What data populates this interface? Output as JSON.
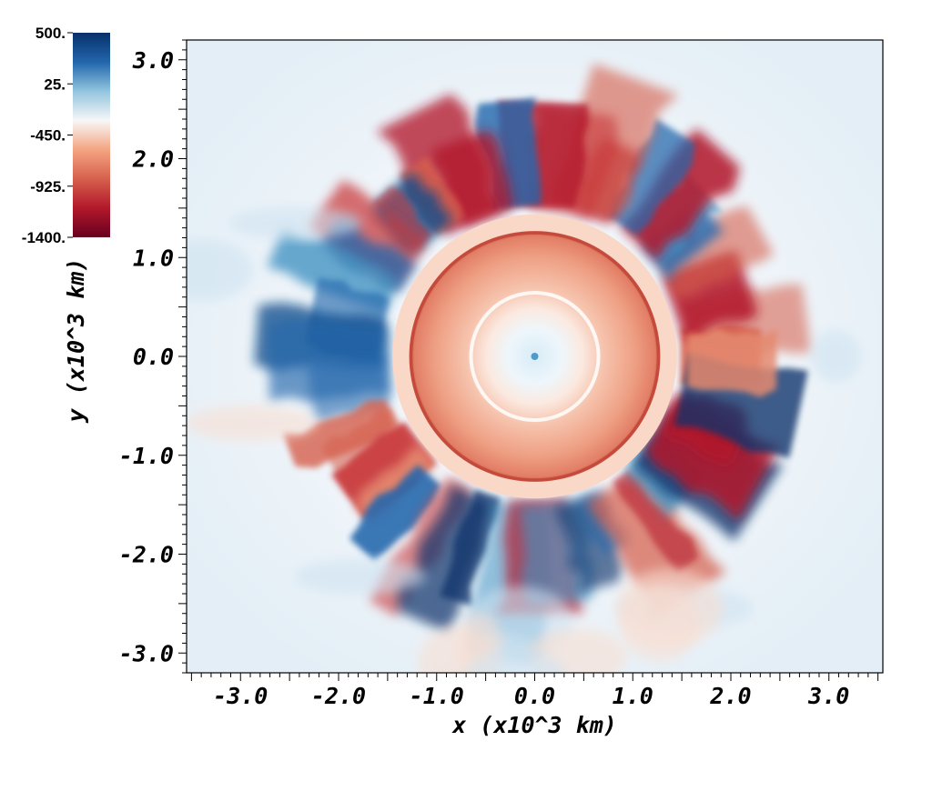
{
  "chart_data": {
    "type": "heatmap",
    "title": "",
    "xlabel": "x (x10^3 km)",
    "ylabel": "y (x10^3 km)",
    "xlim": [
      -3.55,
      3.55
    ],
    "ylim": [
      -3.2,
      3.2
    ],
    "x_ticks": [
      -3.0,
      -2.0,
      -1.0,
      0.0,
      1.0,
      2.0,
      3.0
    ],
    "x_tick_labels": [
      "-3.0",
      "-2.0",
      "-1.0",
      "0.0",
      "1.0",
      "2.0",
      "3.0"
    ],
    "y_ticks": [
      -3.0,
      -2.0,
      -1.0,
      0.0,
      1.0,
      2.0,
      3.0
    ],
    "y_tick_labels": [
      "-3.0",
      "-2.0",
      "-1.0",
      "0.0",
      "1.0",
      "2.0",
      "3.0"
    ],
    "grid": false,
    "colorbar": {
      "placement": "top-left",
      "min": -1400,
      "max": 500,
      "ticks": [
        500,
        25,
        -450,
        -925,
        -1400
      ],
      "tick_labels": [
        "500.",
        "25.",
        "-450.",
        "-925.",
        "-1400."
      ],
      "colors": [
        "#08306b",
        "#2166ac",
        "#92c5de",
        "#f7f7f7",
        "#f4a582",
        "#d6604d",
        "#b2182b",
        "#67001f"
      ]
    },
    "features": {
      "inner_core_radius": 0.4,
      "inner_ring_radius": 0.65,
      "shell_outer_radius": 1.28,
      "halo_outer_radius": 1.45,
      "plume_region_outer_radius": 2.9
    }
  }
}
